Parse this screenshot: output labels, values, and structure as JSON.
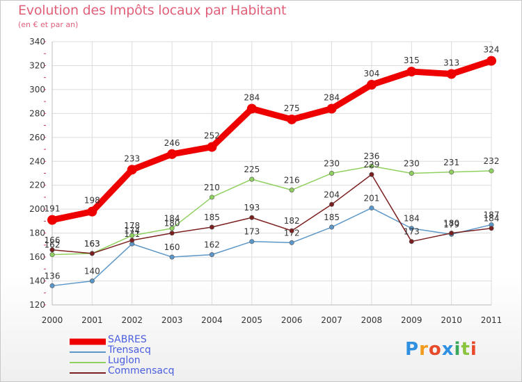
{
  "title": "Evolution des Impôts locaux par Habitant",
  "subtitle": "(en € et par an)",
  "brand": {
    "letters": [
      "P",
      "r",
      "o",
      "x",
      "i",
      "t",
      "i"
    ],
    "colors": [
      "#2f8fe0",
      "#f29a1e",
      "#e84a2c",
      "#2f8fe0",
      "#3aa85a",
      "#8ac43f",
      "#e84a2c"
    ]
  },
  "chart_data": {
    "type": "line",
    "title": "Evolution des Impôts locaux par Habitant",
    "subtitle": "(en € et par an)",
    "xlabel": "",
    "ylabel": "",
    "x": [
      "2000",
      "2001",
      "2002",
      "2003",
      "2004",
      "2005",
      "2006",
      "2007",
      "2008",
      "2009",
      "2010",
      "2011"
    ],
    "ylim": [
      120,
      340
    ],
    "yticks": [
      120,
      140,
      160,
      180,
      200,
      220,
      240,
      260,
      280,
      300,
      320,
      340
    ],
    "legend_position": "bottom-left",
    "series": [
      {
        "name": "SABRES",
        "color": "#ee0000",
        "values": [
          191,
          198,
          233,
          246,
          252,
          284,
          275,
          284,
          304,
          315,
          313,
          324
        ]
      },
      {
        "name": "Trensacq",
        "color": "#5b97c8",
        "values": [
          136,
          140,
          171,
          160,
          162,
          173,
          172,
          185,
          201,
          184,
          179,
          187
        ]
      },
      {
        "name": "Luglon",
        "color": "#90d060",
        "values": [
          162,
          163,
          178,
          184,
          210,
          225,
          216,
          230,
          236,
          230,
          231,
          232
        ]
      },
      {
        "name": "Commensacq",
        "color": "#7a1f1f",
        "values": [
          166,
          163,
          174,
          180,
          185,
          193,
          182,
          204,
          229,
          173,
          180,
          184
        ]
      }
    ]
  }
}
